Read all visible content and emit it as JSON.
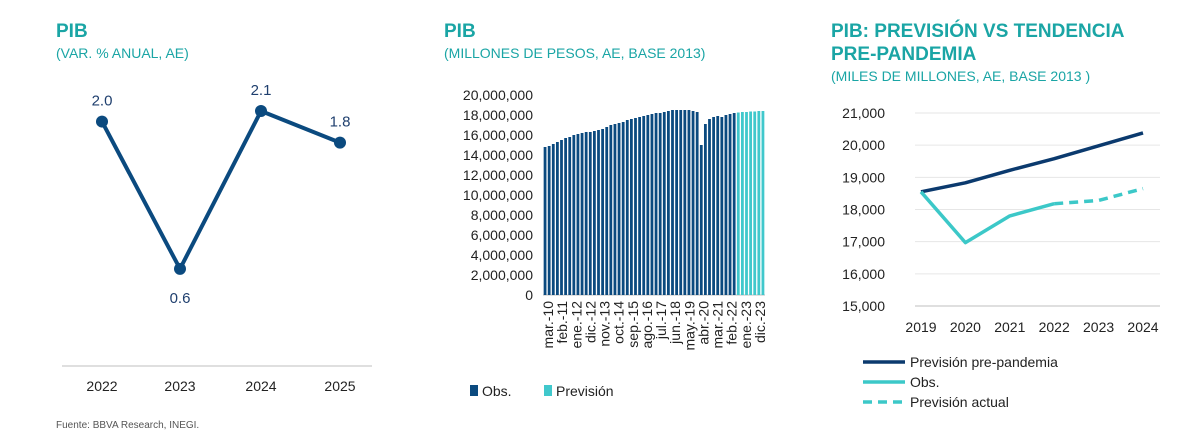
{
  "chart_data": [
    {
      "type": "line",
      "title": "PIB",
      "subtitle": "(VAR. % ANUAL, AE)",
      "categories": [
        "2022",
        "2023",
        "2024",
        "2025"
      ],
      "values": [
        2.0,
        0.6,
        2.1,
        1.8
      ],
      "value_labels": [
        "2.0",
        "0.6",
        "2.1",
        "1.8"
      ],
      "ylim": [
        0,
        2.3
      ],
      "grid": false,
      "color": "#0b4a7f"
    },
    {
      "type": "bar",
      "title": "PIB",
      "subtitle": "(MILLONES DE PESOS, AE, BASE 2013)",
      "y_ticks": [
        "20,000,000",
        "18,000,000",
        "16,000,000",
        "14,000,000",
        "12,000,000",
        "10,000,000",
        "8,000,000",
        "6,000,000",
        "4,000,000",
        "2,000,000",
        "0"
      ],
      "ylim": [
        0,
        20000000
      ],
      "x_tick_labels": [
        "mar.-10",
        "feb.-11",
        "ene.-12",
        "dic.-12",
        "nov.-13",
        "oct.-14",
        "sep.-15",
        "ago.-16",
        "jul.-17",
        "jun.-18",
        "may.-19",
        "abr.-20",
        "mar.-21",
        "feb.-22",
        "ene.-23",
        "dic.-23"
      ],
      "series": [
        {
          "name": "Obs.",
          "color": "#0b4a7f",
          "values": [
            14.8,
            14.9,
            15.1,
            15.3,
            15.5,
            15.7,
            15.8,
            16.0,
            16.1,
            16.2,
            16.3,
            16.3,
            16.4,
            16.5,
            16.6,
            16.8,
            17.0,
            17.1,
            17.2,
            17.3,
            17.5,
            17.6,
            17.7,
            17.8,
            17.9,
            18.0,
            18.1,
            18.2,
            18.2,
            18.3,
            18.4,
            18.5,
            18.5,
            18.5,
            18.5,
            18.5,
            18.4,
            18.3,
            15.0,
            17.1,
            17.6,
            17.8,
            17.9,
            17.8,
            18.0,
            18.1,
            18.2
          ]
        },
        {
          "name": "Previsión",
          "color": "#40c8cc",
          "values": [
            18.25,
            18.3,
            18.3,
            18.35,
            18.35,
            18.4,
            18.4
          ]
        }
      ],
      "value_unit_note": "values in millions (×1,000,000 pesos)",
      "grid": false,
      "legend": [
        "Obs.",
        "Previsión"
      ]
    },
    {
      "type": "line",
      "title_line1": "PIB: PREVISIÓN VS TENDENCIA",
      "title_line2": "PRE-PANDEMIA",
      "subtitle": "(MILES DE MILLONES, AE, BASE 2013 )",
      "x": [
        "2019",
        "2020",
        "2021",
        "2022",
        "2023",
        "2024"
      ],
      "y_ticks": [
        "21,000",
        "20,000",
        "19,000",
        "18,000",
        "17,000",
        "16,000",
        "15,000"
      ],
      "ylim": [
        15000,
        21000
      ],
      "series": [
        {
          "name": "Previsión pre-pandemia",
          "color": "#0b3a6e",
          "style": "solid",
          "values": [
            18550,
            18830,
            19220,
            19580,
            19980,
            20380
          ]
        },
        {
          "name": "Obs.",
          "color": "#3cc8c8",
          "style": "solid",
          "values": [
            18550,
            16970,
            17800,
            18180,
            null,
            null
          ]
        },
        {
          "name": "Previsión actual",
          "color": "#3cc8c8",
          "style": "dashed",
          "values": [
            null,
            null,
            null,
            18180,
            18280,
            18650
          ]
        }
      ],
      "grid": true,
      "legend_position": "bottom"
    }
  ],
  "source": "Fuente: BBVA Research, INEGI."
}
